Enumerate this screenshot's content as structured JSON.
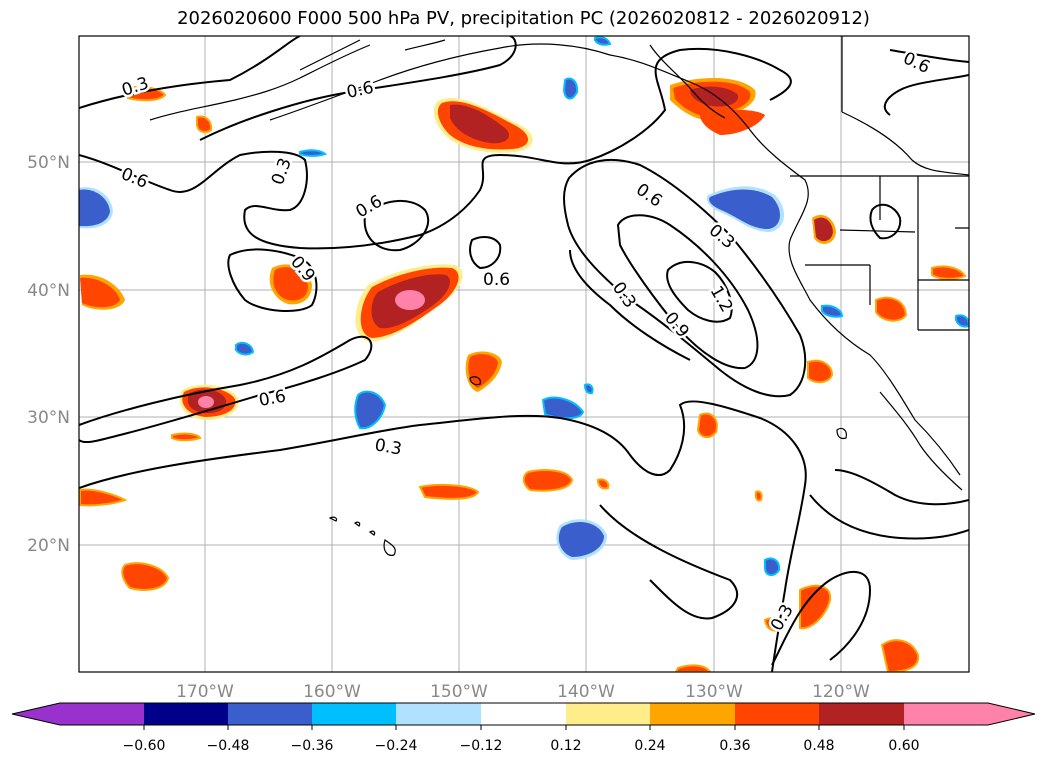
{
  "title": "2026020600 F000 500 hPa PV, precipitation PC (2026020812 - 2026020912)",
  "lat_ticks": [
    "50°N",
    "40°N",
    "30°N",
    "20°N"
  ],
  "lon_ticks": [
    "170°W",
    "160°W",
    "150°W",
    "140°W",
    "130°W",
    "120°W"
  ],
  "contour_labels": {
    "c1": "0.3",
    "c2": "0.6",
    "c3": "0.6",
    "c4": "0.3",
    "c5": "0.6",
    "c6": "0.9",
    "c7": "0.6",
    "c8": "0.6",
    "c9": "0.6",
    "c10": "0.3",
    "c11": "0.6",
    "c12": "0.3",
    "c13": "0.3",
    "c14": "1.2",
    "c15": "0.9",
    "c16": "0.3",
    "c17": "0.3"
  },
  "colorbar": {
    "tick_labels": [
      "−0.60",
      "−0.48",
      "−0.36",
      "−0.24",
      "−0.12",
      "0.12",
      "0.24",
      "0.36",
      "0.48",
      "0.60"
    ],
    "colors": {
      "below": "#9932cc",
      "n060": "#00008b",
      "n048": "#3a5fcd",
      "n036": "#00bfff",
      "n024": "#b0e2ff",
      "n012": "#ffffff",
      "p012": "#ffec8b",
      "p024": "#ffa500",
      "p036": "#ff4500",
      "p048": "#b22222",
      "above": "#ff82ab"
    }
  }
}
